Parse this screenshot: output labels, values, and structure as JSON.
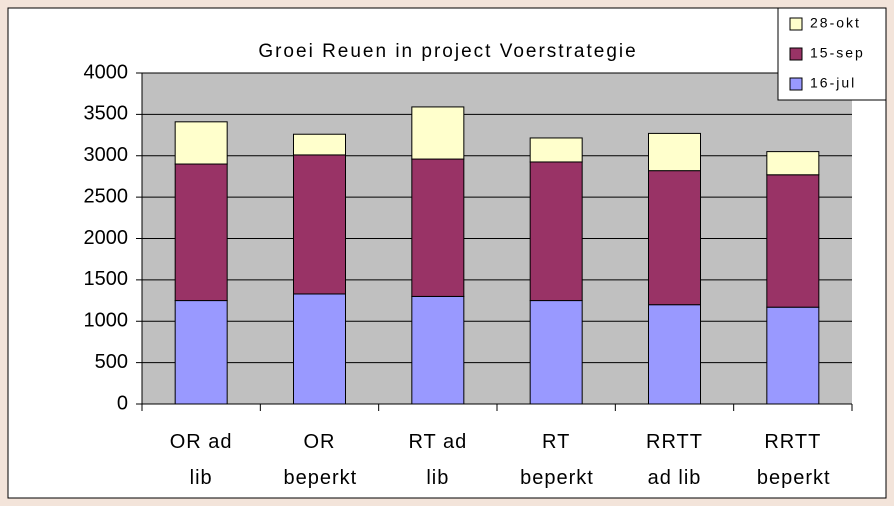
{
  "chart_data": {
    "type": "stacked_bar",
    "title": "Groei Reuen in project Voerstrategie",
    "categories": [
      "OR ad lib",
      "OR beperkt",
      "RT ad lib",
      "RT beperkt",
      "RRTT ad lib",
      "RRTT beperkt"
    ],
    "series": [
      {
        "name": "16-jul",
        "color": "#9999ff",
        "values": [
          1250,
          1330,
          1300,
          1250,
          1200,
          1170
        ]
      },
      {
        "name": "15-sep",
        "color": "#993366",
        "values": [
          1650,
          1680,
          1660,
          1675,
          1620,
          1600
        ]
      },
      {
        "name": "28-okt",
        "color": "#ffffcc",
        "values": [
          510,
          250,
          630,
          290,
          450,
          280
        ]
      }
    ],
    "ylim": [
      0,
      4000
    ],
    "yticks": [
      0,
      500,
      1000,
      1500,
      2000,
      2500,
      3000,
      3500,
      4000
    ],
    "grid": true,
    "legend": "top-right"
  }
}
